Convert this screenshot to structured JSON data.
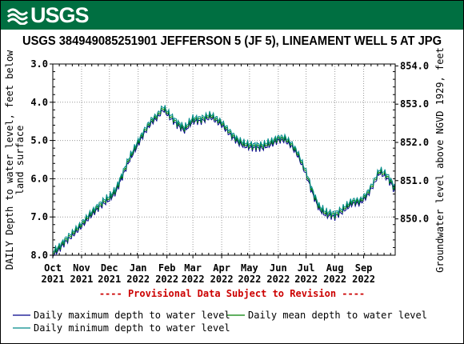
{
  "header": {
    "logo_text": "USGS",
    "logo_icon": "usgs-wave-icon",
    "brand_color": "#006f41"
  },
  "chart_data": {
    "type": "line",
    "title": "USGS 384949085251901 JEFFERSON 5 (JF 5), LINEAMENT WELL 5 AT JPG",
    "ylabel": "DAILY Depth to water level, feet below land surface",
    "ylabel_lines": [
      "DAILY Depth to water level, feet below",
      "land surface"
    ],
    "y2label": "Groundwater level above NGVD 1929, feet",
    "ylim": [
      8.0,
      3.0
    ],
    "y_inverted": true,
    "yticks": [
      "3.0",
      "4.0",
      "5.0",
      "6.0",
      "7.0",
      "8.0"
    ],
    "y2ticks": [
      "850.0",
      "851.0",
      "852.0",
      "853.0",
      "854.0"
    ],
    "x_ticks": [
      {
        "month": "Oct",
        "year": "2021"
      },
      {
        "month": "Nov",
        "year": "2021"
      },
      {
        "month": "Dec",
        "year": "2021"
      },
      {
        "month": "Jan",
        "year": "2022"
      },
      {
        "month": "Feb",
        "year": "2022"
      },
      {
        "month": "Mar",
        "year": "2022"
      },
      {
        "month": "Apr",
        "year": "2022"
      },
      {
        "month": "May",
        "year": "2022"
      },
      {
        "month": "Jun",
        "year": "2022"
      },
      {
        "month": "Jul",
        "year": "2022"
      },
      {
        "month": "Aug",
        "year": "2022"
      },
      {
        "month": "Sep",
        "year": "2022"
      }
    ],
    "x_range": [
      "2021-10-01",
      "2022-10-05"
    ],
    "grid": true,
    "annotation": "---- Provisional Data Subject to Revision ----",
    "annotation_color": "#cc0000",
    "series": [
      {
        "name": "Daily maximum depth to water level",
        "color": "#00008b",
        "offset": 0.05
      },
      {
        "name": "Daily mean depth to water level",
        "color": "#008000",
        "offset": 0.0
      },
      {
        "name": "Daily minimum depth to water level",
        "color": "#008b8b",
        "offset": -0.05
      }
    ],
    "mean_values": [
      [
        "2021-10-01",
        7.95
      ],
      [
        "2021-10-08",
        7.8
      ],
      [
        "2021-10-15",
        7.6
      ],
      [
        "2021-10-22",
        7.45
      ],
      [
        "2021-11-01",
        7.2
      ],
      [
        "2021-11-10",
        6.95
      ],
      [
        "2021-11-18",
        6.75
      ],
      [
        "2021-11-25",
        6.6
      ],
      [
        "2021-12-01",
        6.5
      ],
      [
        "2021-12-08",
        6.3
      ],
      [
        "2021-12-15",
        5.9
      ],
      [
        "2021-12-22",
        5.5
      ],
      [
        "2022-01-01",
        5.05
      ],
      [
        "2022-01-08",
        4.75
      ],
      [
        "2022-01-15",
        4.5
      ],
      [
        "2022-01-22",
        4.35
      ],
      [
        "2022-01-28",
        4.15
      ],
      [
        "2022-02-04",
        4.35
      ],
      [
        "2022-02-12",
        4.55
      ],
      [
        "2022-02-20",
        4.7
      ],
      [
        "2022-03-01",
        4.45
      ],
      [
        "2022-03-10",
        4.45
      ],
      [
        "2022-03-20",
        4.35
      ],
      [
        "2022-04-01",
        4.55
      ],
      [
        "2022-04-10",
        4.8
      ],
      [
        "2022-04-18",
        5.0
      ],
      [
        "2022-04-25",
        5.1
      ],
      [
        "2022-05-05",
        5.15
      ],
      [
        "2022-05-15",
        5.15
      ],
      [
        "2022-05-25",
        5.05
      ],
      [
        "2022-06-01",
        4.95
      ],
      [
        "2022-06-08",
        4.95
      ],
      [
        "2022-06-15",
        5.1
      ],
      [
        "2022-06-22",
        5.35
      ],
      [
        "2022-07-01",
        5.85
      ],
      [
        "2022-07-08",
        6.35
      ],
      [
        "2022-07-15",
        6.75
      ],
      [
        "2022-07-22",
        6.9
      ],
      [
        "2022-08-01",
        6.95
      ],
      [
        "2022-08-10",
        6.8
      ],
      [
        "2022-08-20",
        6.6
      ],
      [
        "2022-08-28",
        6.6
      ],
      [
        "2022-09-05",
        6.4
      ],
      [
        "2022-09-12",
        6.1
      ],
      [
        "2022-09-18",
        5.8
      ],
      [
        "2022-09-25",
        5.9
      ],
      [
        "2022-10-01",
        6.1
      ],
      [
        "2022-10-05",
        6.3
      ]
    ]
  },
  "legend": {
    "items": [
      "Daily maximum depth to water level",
      "Daily mean depth to water level",
      "Daily minimum depth to water level"
    ]
  }
}
